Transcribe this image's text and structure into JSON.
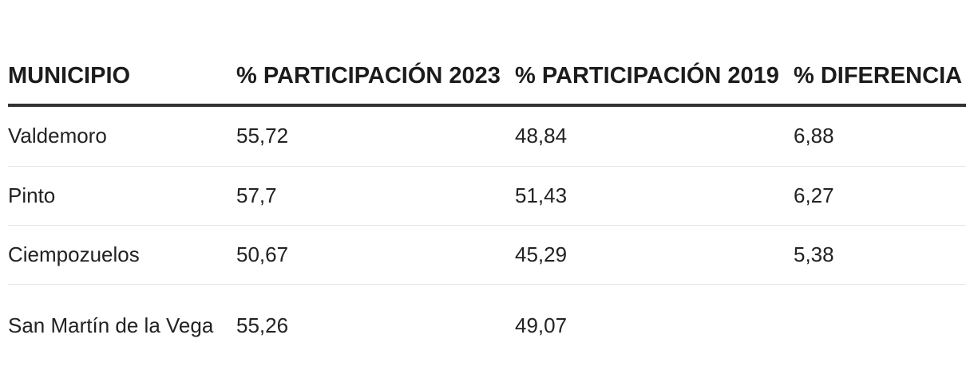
{
  "table": {
    "headers": [
      "MUNICIPIO",
      "% PARTICIPACIÓN 2023",
      "% PARTICIPACIÓN 2019",
      "% DIFERENCIA"
    ],
    "rows": [
      [
        "Valdemoro",
        "55,72",
        "48,84",
        "6,88"
      ],
      [
        "Pinto",
        "57,7",
        "51,43",
        "6,27"
      ],
      [
        "Ciempozuelos",
        "50,67",
        "45,29",
        "5,38"
      ],
      [
        "San Martín de la Vega",
        "55,26",
        "49,07",
        ""
      ]
    ]
  }
}
